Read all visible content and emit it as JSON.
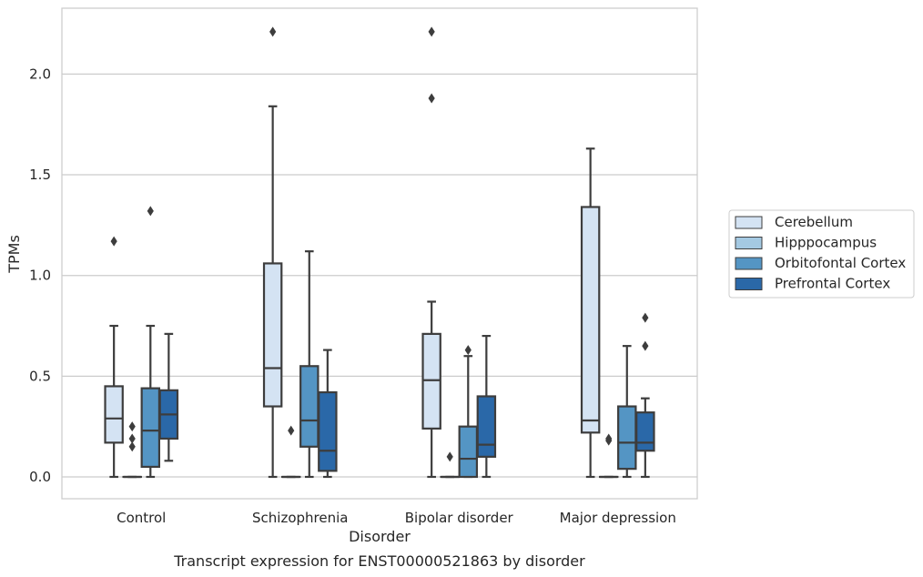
{
  "chart_data": {
    "type": "box",
    "title": "",
    "caption": "Transcript expression for ENST00000521863 by disorder",
    "xlabel": "Disorder",
    "ylabel": "TPMs",
    "ylim": [
      -0.11,
      2.33
    ],
    "yticks": [
      "0.0",
      "0.5",
      "1.0",
      "1.5",
      "2.0"
    ],
    "ytick_values": [
      0.0,
      0.5,
      1.0,
      1.5,
      2.0
    ],
    "grid": "horizontal",
    "legend_position": "right",
    "categories": [
      "Control",
      "Schizophrenia",
      "Bipolar disorder",
      "Major depression"
    ],
    "series": [
      {
        "name": "Cerebellum",
        "color": "#d4e3f3",
        "boxes": [
          {
            "whislo": 0.0,
            "q1": 0.17,
            "med": 0.29,
            "q3": 0.45,
            "whishi": 0.75,
            "fliers": [
              1.17
            ]
          },
          {
            "whislo": 0.0,
            "q1": 0.35,
            "med": 0.54,
            "q3": 1.06,
            "whishi": 1.84,
            "fliers": [
              2.21
            ]
          },
          {
            "whislo": 0.0,
            "q1": 0.24,
            "med": 0.48,
            "q3": 0.71,
            "whishi": 0.87,
            "fliers": [
              1.88,
              2.21
            ]
          },
          {
            "whislo": 0.0,
            "q1": 0.22,
            "med": 0.28,
            "q3": 1.34,
            "whishi": 1.63,
            "fliers": []
          }
        ]
      },
      {
        "name": "Hipppocampus",
        "color": "#a4c9e2",
        "boxes": [
          {
            "whislo": 0.0,
            "q1": 0.0,
            "med": 0.0,
            "q3": 0.0,
            "whishi": 0.0,
            "fliers": [
              0.15,
              0.19,
              0.25
            ]
          },
          {
            "whislo": 0.0,
            "q1": 0.0,
            "med": 0.0,
            "q3": 0.0,
            "whishi": 0.0,
            "fliers": [
              0.23
            ]
          },
          {
            "whislo": 0.0,
            "q1": 0.0,
            "med": 0.0,
            "q3": 0.0,
            "whishi": 0.0,
            "fliers": [
              0.1
            ]
          },
          {
            "whislo": 0.0,
            "q1": 0.0,
            "med": 0.0,
            "q3": 0.0,
            "whishi": 0.0,
            "fliers": [
              0.18,
              0.19
            ]
          }
        ]
      },
      {
        "name": "Orbitofontal Cortex",
        "color": "#5495c4",
        "boxes": [
          {
            "whislo": 0.0,
            "q1": 0.05,
            "med": 0.23,
            "q3": 0.44,
            "whishi": 0.75,
            "fliers": [
              1.32
            ]
          },
          {
            "whislo": 0.0,
            "q1": 0.15,
            "med": 0.28,
            "q3": 0.55,
            "whishi": 1.12,
            "fliers": []
          },
          {
            "whislo": 0.0,
            "q1": 0.0,
            "med": 0.09,
            "q3": 0.25,
            "whishi": 0.6,
            "fliers": [
              0.63
            ]
          },
          {
            "whislo": 0.0,
            "q1": 0.04,
            "med": 0.17,
            "q3": 0.35,
            "whishi": 0.65,
            "fliers": []
          }
        ]
      },
      {
        "name": "Prefrontal Cortex",
        "color": "#2a68a8",
        "boxes": [
          {
            "whislo": 0.08,
            "q1": 0.19,
            "med": 0.31,
            "q3": 0.43,
            "whishi": 0.71,
            "fliers": []
          },
          {
            "whislo": 0.0,
            "q1": 0.03,
            "med": 0.13,
            "q3": 0.42,
            "whishi": 0.63,
            "fliers": []
          },
          {
            "whislo": 0.0,
            "q1": 0.1,
            "med": 0.16,
            "q3": 0.4,
            "whishi": 0.7,
            "fliers": []
          },
          {
            "whislo": 0.0,
            "q1": 0.13,
            "med": 0.17,
            "q3": 0.32,
            "whishi": 0.39,
            "fliers": [
              0.65,
              0.79
            ]
          }
        ]
      }
    ]
  },
  "colors": {
    "box_edge": "#3d3d3d",
    "grid": "#cccccc",
    "frame": "#cccccc",
    "text": "#262626"
  }
}
